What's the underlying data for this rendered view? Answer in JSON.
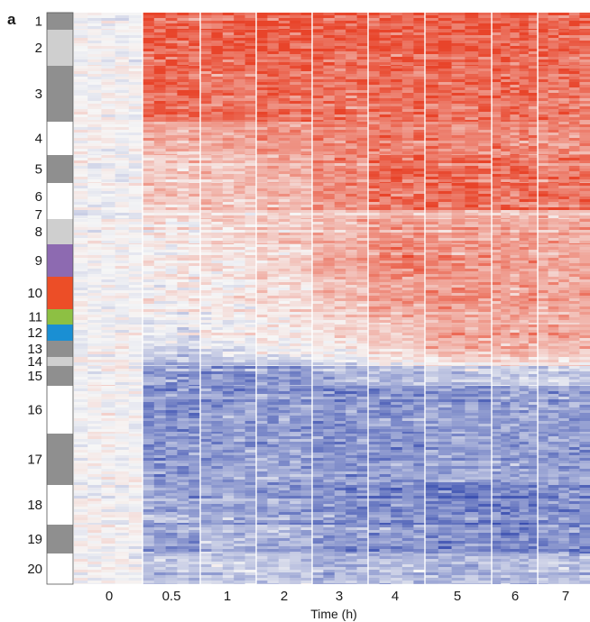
{
  "panel_label": "a",
  "chart_data": {
    "type": "heatmap",
    "title": "",
    "xlabel": "Time (h)",
    "ylabel": "",
    "x_ticks": [
      "0",
      "0.5",
      "1",
      "2",
      "3",
      "4",
      "5",
      "6",
      "7"
    ],
    "color_scale": {
      "low": "#3a4fb0",
      "mid": "#f6f6f6",
      "high": "#e8442a"
    },
    "clusters": [
      {
        "label": "1",
        "color": "#8f8f8f",
        "profile": [
          0,
          0.85,
          0.85,
          0.85,
          0.85,
          0.85,
          0.85,
          0.85,
          0.85
        ]
      },
      {
        "label": "2",
        "color": "#cfcfcf",
        "profile": [
          0,
          0.85,
          0.85,
          0.85,
          0.8,
          0.85,
          0.85,
          0.85,
          0.8
        ]
      },
      {
        "label": "3",
        "color": "#8f8f8f",
        "profile": [
          0,
          0.8,
          0.7,
          0.75,
          0.7,
          0.75,
          0.75,
          0.75,
          0.7
        ]
      },
      {
        "label": "4",
        "color": "#ffffff",
        "profile": [
          0,
          0.35,
          0.4,
          0.5,
          0.6,
          0.65,
          0.6,
          0.6,
          0.55
        ]
      },
      {
        "label": "5",
        "color": "#8f8f8f",
        "profile": [
          0,
          0.25,
          0.3,
          0.4,
          0.6,
          0.8,
          0.8,
          0.8,
          0.7
        ]
      },
      {
        "label": "6",
        "color": "#ffffff",
        "profile": [
          0,
          0.3,
          0.35,
          0.4,
          0.6,
          0.75,
          0.85,
          0.8,
          0.75
        ]
      },
      {
        "label": "7",
        "color": "#ffffff",
        "profile": [
          -0.1,
          0.15,
          0.2,
          0.2,
          0.25,
          0.3,
          0.3,
          0.3,
          0.3
        ]
      },
      {
        "label": "8",
        "color": "#cfcfcf",
        "profile": [
          0,
          0.05,
          0.15,
          0.25,
          0.35,
          0.5,
          0.45,
          0.45,
          0.4
        ]
      },
      {
        "label": "9",
        "color": "#8d6ab1",
        "profile": [
          0,
          0.05,
          0.1,
          0.2,
          0.4,
          0.65,
          0.55,
          0.5,
          0.45
        ]
      },
      {
        "label": "10",
        "color": "#ec4e27",
        "profile": [
          0,
          0.05,
          0.1,
          0.15,
          0.3,
          0.5,
          0.55,
          0.5,
          0.45
        ]
      },
      {
        "label": "11",
        "color": "#8dc043",
        "profile": [
          0,
          0,
          0.05,
          0.1,
          0.2,
          0.35,
          0.45,
          0.4,
          0.4
        ]
      },
      {
        "label": "12",
        "color": "#1a8fd3",
        "profile": [
          0,
          -0.1,
          0,
          0.05,
          0.15,
          0.3,
          0.45,
          0.5,
          0.45
        ]
      },
      {
        "label": "13",
        "color": "#8f8f8f",
        "profile": [
          0,
          -0.2,
          -0.1,
          0,
          0.1,
          0.2,
          0.35,
          0.4,
          0.35
        ]
      },
      {
        "label": "14",
        "color": "#cfcfcf",
        "profile": [
          0,
          -0.35,
          -0.3,
          -0.2,
          -0.1,
          0,
          0.1,
          0.1,
          0.1
        ]
      },
      {
        "label": "15",
        "color": "#8f8f8f",
        "profile": [
          0,
          -0.55,
          -0.6,
          -0.55,
          -0.45,
          -0.35,
          -0.3,
          -0.25,
          -0.25
        ]
      },
      {
        "label": "16",
        "color": "#ffffff",
        "profile": [
          0,
          -0.6,
          -0.55,
          -0.55,
          -0.6,
          -0.55,
          -0.55,
          -0.5,
          -0.5
        ]
      },
      {
        "label": "17",
        "color": "#8f8f8f",
        "profile": [
          0,
          -0.55,
          -0.5,
          -0.5,
          -0.55,
          -0.55,
          -0.5,
          -0.5,
          -0.5
        ]
      },
      {
        "label": "18",
        "color": "#ffffff",
        "profile": [
          0,
          -0.45,
          -0.45,
          -0.5,
          -0.6,
          -0.6,
          -0.65,
          -0.65,
          -0.6
        ]
      },
      {
        "label": "19",
        "color": "#8f8f8f",
        "profile": [
          0,
          -0.5,
          -0.35,
          -0.4,
          -0.55,
          -0.55,
          -0.6,
          -0.65,
          -0.6
        ]
      },
      {
        "label": "20",
        "color": "#ffffff",
        "profile": [
          0,
          -0.25,
          -0.2,
          -0.25,
          -0.35,
          -0.35,
          -0.35,
          -0.35,
          -0.3
        ]
      }
    ]
  }
}
